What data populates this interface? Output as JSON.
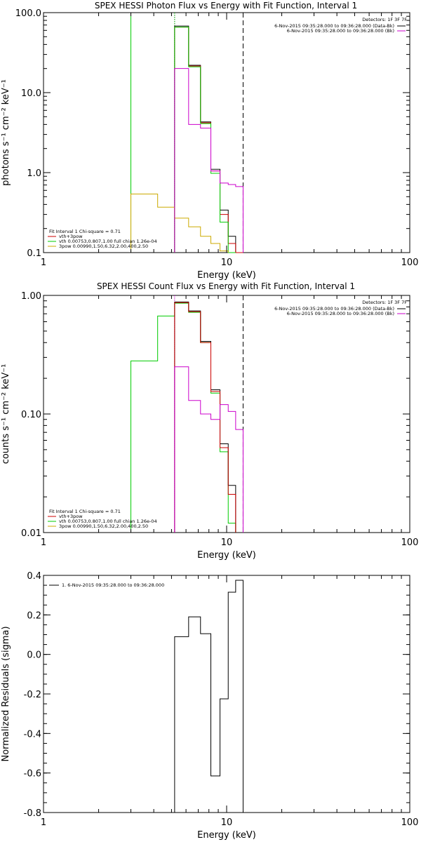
{
  "chart_data": [
    {
      "type": "line",
      "title": "SPEX HESSI Photon Flux vs Energy with Fit Function, Interval 1",
      "xlabel": "Energy (keV)",
      "ylabel": "photons s⁻¹ cm⁻² keV⁻¹",
      "xscale": "log",
      "yscale": "log",
      "xlim": [
        1,
        100
      ],
      "ylim": [
        0.1,
        100
      ],
      "xticks": [
        {
          "v": 1,
          "t": "1"
        },
        {
          "v": 10,
          "t": "10"
        },
        {
          "v": 100,
          "t": "100"
        }
      ],
      "yticks": [
        {
          "v": 0.1,
          "t": "0.1"
        },
        {
          "v": 1,
          "t": "1.0"
        },
        {
          "v": 10,
          "t": "10.0"
        },
        {
          "v": 100,
          "t": "100.0"
        }
      ],
      "detectors": "Detectors: 1F 3F 7F",
      "legend_right": [
        {
          "text": "6-Nov-2015 09:35:28.000 to 09:36:28.000 (Data-Bk)",
          "color": "#000000"
        },
        {
          "text": "6-Nov-2015 09:35:28.000 to 09:36:28.000 (Bk)",
          "color": "#cc00cc"
        }
      ],
      "legend_left": [
        {
          "text": "Fit Interval 1    Chi-square = 0.71",
          "color": null
        },
        {
          "text": "vth+3pow",
          "color": "#cc0000"
        },
        {
          "text": "vth 0.00753,0.807,1.00  full chian 1.26e-04",
          "color": "#00cc00"
        },
        {
          "text": "3pow 0.00990,1.50,6.32,2.00,400,2.50",
          "color": "#ccaa00"
        }
      ],
      "vlines": [
        {
          "x": 3.0,
          "color": "#00cc00",
          "style": "solid"
        },
        {
          "x": 5.2,
          "color": "#cc00cc",
          "style": "dotted"
        },
        {
          "x": 5.2,
          "color": "#00cc00",
          "style": "dotted"
        },
        {
          "x": 12.3,
          "color": "#000000",
          "style": "dashed"
        }
      ],
      "series": [
        {
          "name": "Data-Bk",
          "color": "#000000",
          "edges": [
            5.2,
            6.2,
            7.2,
            8.2,
            9.2,
            10.2,
            11.2,
            12.3
          ],
          "values": [
            68,
            22,
            4.3,
            1.1,
            0.34,
            0.16,
            0.095
          ]
        },
        {
          "name": "vth+3pow",
          "color": "#cc0000",
          "edges": [
            5.2,
            6.2,
            7.2,
            8.2,
            9.2,
            10.2,
            11.2,
            12.3
          ],
          "values": [
            66,
            21.5,
            4.2,
            1.05,
            0.3,
            0.13,
            0.1
          ]
        },
        {
          "name": "vth",
          "color": "#00cc00",
          "edges": [
            5.2,
            6.2,
            7.2,
            8.2,
            9.2,
            10.2,
            11.2
          ],
          "values": [
            66,
            21,
            4.1,
            0.98,
            0.24,
            0.1
          ]
        },
        {
          "name": "3pow",
          "color": "#ccaa00",
          "edges": [
            3.0,
            4.2,
            5.2,
            6.2,
            7.2,
            8.2,
            9.2,
            10.2
          ],
          "values": [
            0.54,
            0.37,
            0.27,
            0.21,
            0.16,
            0.13,
            0.105
          ]
        },
        {
          "name": "Bk",
          "color": "#cc00cc",
          "edges": [
            5.2,
            6.2,
            7.2,
            8.2,
            9.2,
            10.2,
            11.2,
            12.3
          ],
          "values": [
            20,
            4,
            3.6,
            1.05,
            0.74,
            0.71,
            0.67
          ]
        }
      ]
    },
    {
      "type": "line",
      "title": "SPEX HESSI Count Flux vs Energy with Fit Function, Interval 1",
      "xlabel": "Energy (keV)",
      "ylabel": "counts s⁻¹ cm⁻² keV⁻¹",
      "xscale": "log",
      "yscale": "log",
      "xlim": [
        1,
        100
      ],
      "ylim": [
        0.01,
        1
      ],
      "xticks": [
        {
          "v": 1,
          "t": "1"
        },
        {
          "v": 10,
          "t": "10"
        },
        {
          "v": 100,
          "t": "100"
        }
      ],
      "yticks": [
        {
          "v": 0.01,
          "t": "0.01"
        },
        {
          "v": 0.1,
          "t": "0.10"
        },
        {
          "v": 1,
          "t": "1.00"
        }
      ],
      "detectors": "Detectors: 1F 3F 7F",
      "legend_right": [
        {
          "text": "6-Nov-2015 09:35:28.000 to 09:36:28.000 (Data-Bk)",
          "color": "#000000"
        },
        {
          "text": "6-Nov-2015 09:35:28.000 to 09:36:28.000 (Bk)",
          "color": "#cc00cc"
        }
      ],
      "legend_left": [
        {
          "text": "Fit Interval 1    Chi-square = 0.71",
          "color": null
        },
        {
          "text": "vth+3pow",
          "color": "#cc0000"
        },
        {
          "text": "vth 0.00753,0.807,1.00  full chian 1.26e-04",
          "color": "#00cc00"
        },
        {
          "text": "3pow 0.00990,1.50,6.32,2.00,400,2.50",
          "color": "#ccaa00"
        }
      ],
      "vlines": [
        {
          "x": 5.2,
          "color": "#cc00cc",
          "style": "dotted"
        },
        {
          "x": 12.3,
          "color": "#000000",
          "style": "dashed"
        }
      ],
      "series": [
        {
          "name": "vth",
          "color": "#00cc00",
          "edges": [
            3.0,
            4.2,
            5.2,
            6.2,
            7.2,
            8.2,
            9.2,
            10.2,
            11.2
          ],
          "values": [
            0.28,
            0.67,
            0.86,
            0.72,
            0.4,
            0.15,
            0.048,
            0.012
          ]
        },
        {
          "name": "Data-Bk",
          "color": "#000000",
          "edges": [
            5.2,
            6.2,
            7.2,
            8.2,
            9.2,
            10.2,
            11.2
          ],
          "values": [
            0.88,
            0.74,
            0.41,
            0.16,
            0.056,
            0.025
          ]
        },
        {
          "name": "vth+3pow",
          "color": "#cc0000",
          "edges": [
            5.2,
            6.2,
            7.2,
            8.2,
            9.2,
            10.2,
            11.2
          ],
          "values": [
            0.87,
            0.73,
            0.4,
            0.155,
            0.052,
            0.021
          ]
        },
        {
          "name": "Bk",
          "color": "#cc00cc",
          "edges": [
            5.2,
            6.2,
            7.2,
            8.2,
            9.2,
            10.2,
            11.2,
            12.3
          ],
          "values": [
            0.25,
            0.13,
            0.1,
            0.09,
            0.12,
            0.105,
            0.074
          ]
        }
      ]
    },
    {
      "type": "line",
      "title": "",
      "xlabel": "Energy (keV)",
      "ylabel": "Normalized Residuals (sigma)",
      "xscale": "log",
      "yscale": "linear",
      "xlim": [
        1,
        100
      ],
      "ylim": [
        -0.8,
        0.4
      ],
      "xticks": [
        {
          "v": 1,
          "t": "1"
        },
        {
          "v": 10,
          "t": "10"
        },
        {
          "v": 100,
          "t": "100"
        }
      ],
      "yticks": [
        {
          "v": -0.8,
          "t": "-0.8"
        },
        {
          "v": -0.6,
          "t": "-0.6"
        },
        {
          "v": -0.4,
          "t": "-0.4"
        },
        {
          "v": -0.2,
          "t": "-0.2"
        },
        {
          "v": 0.0,
          "t": "0.0"
        },
        {
          "v": 0.2,
          "t": "0.2"
        },
        {
          "v": 0.4,
          "t": "0.4"
        }
      ],
      "legend_left": [
        {
          "text": "1.  6-Nov-2015 09:35:28.000 to 09:36:28.000",
          "color": "#000000"
        }
      ],
      "series": [
        {
          "name": "residuals",
          "color": "#000000",
          "edges": [
            5.2,
            6.2,
            7.2,
            8.2,
            9.2,
            10.2,
            11.2,
            12.3
          ],
          "values": [
            0.09,
            0.19,
            0.105,
            -0.615,
            -0.225,
            0.315,
            0.375
          ]
        }
      ]
    }
  ]
}
